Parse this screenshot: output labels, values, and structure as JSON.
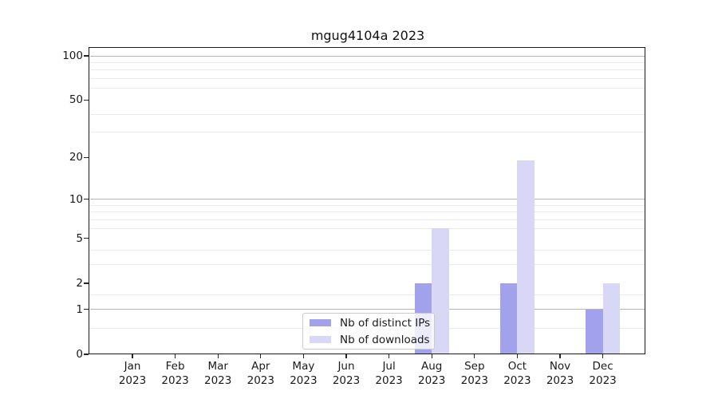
{
  "title": "mgug4104a 2023",
  "legend": {
    "items": [
      {
        "label": "Nb of distinct IPs",
        "color": "#a1a1ec"
      },
      {
        "label": "Nb of downloads",
        "color": "#d8d8f6"
      }
    ]
  },
  "colors": {
    "bar_distinct_ips": "#a1a1ec",
    "bar_downloads": "#d8d8f6",
    "major_grid": "#b5b5b5",
    "minor_grid": "#eaeaea",
    "spine": "#1a1a1a",
    "legend_border": "#cacaca",
    "background": "#ffffff"
  },
  "y_axis": {
    "ticks": [
      100,
      50,
      20,
      10,
      5,
      2,
      1,
      0
    ]
  },
  "x_axis": {
    "months": [
      {
        "month": "Jan",
        "year": "2023"
      },
      {
        "month": "Feb",
        "year": "2023"
      },
      {
        "month": "Mar",
        "year": "2023"
      },
      {
        "month": "Apr",
        "year": "2023"
      },
      {
        "month": "May",
        "year": "2023"
      },
      {
        "month": "Jun",
        "year": "2023"
      },
      {
        "month": "Jul",
        "year": "2023"
      },
      {
        "month": "Aug",
        "year": "2023"
      },
      {
        "month": "Sep",
        "year": "2023"
      },
      {
        "month": "Oct",
        "year": "2023"
      },
      {
        "month": "Nov",
        "year": "2023"
      },
      {
        "month": "Dec",
        "year": "2023"
      }
    ]
  },
  "chart_data": {
    "type": "bar",
    "title": "mgug4104a 2023",
    "categories": [
      "Jan 2023",
      "Feb 2023",
      "Mar 2023",
      "Apr 2023",
      "May 2023",
      "Jun 2023",
      "Jul 2023",
      "Aug 2023",
      "Sep 2023",
      "Oct 2023",
      "Nov 2023",
      "Dec 2023"
    ],
    "series": [
      {
        "name": "Nb of distinct IPs",
        "color": "#a1a1ec",
        "values": [
          0,
          0,
          0,
          0,
          0,
          0,
          0,
          2,
          0,
          2,
          0,
          1
        ]
      },
      {
        "name": "Nb of downloads",
        "color": "#d8d8f6",
        "values": [
          0,
          0,
          0,
          0,
          0,
          0,
          0,
          6,
          0,
          19,
          0,
          2
        ]
      }
    ],
    "yscale": "log1p",
    "yticks": [
      0,
      1,
      2,
      5,
      10,
      20,
      50,
      100
    ],
    "major_gridlines": [
      1,
      10,
      100
    ],
    "minor_gridlines": [
      0.5,
      1.5,
      3,
      4,
      6,
      7,
      8,
      9,
      30,
      40,
      60,
      70,
      80,
      90
    ],
    "ylim": [
      0,
      114
    ],
    "grid": true,
    "legend_position": "lower center",
    "bar_grouping": "paired side-by-side per month"
  }
}
